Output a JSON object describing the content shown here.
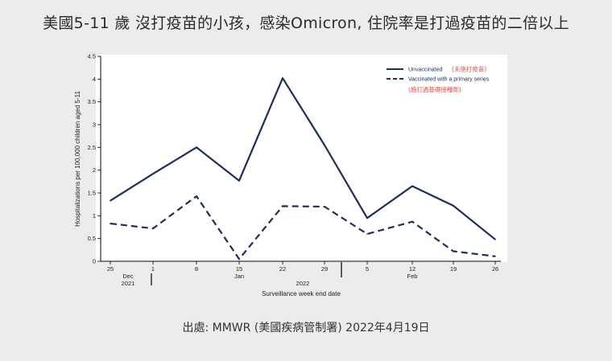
{
  "headline": "美國5-11 歲 沒打疫苗的小孩，感染Omicron, 住院率是打過疫苗的二倍以上",
  "source": "出處: MMWR (美國疾病管制署) 2022年4月19日",
  "chart_data": {
    "type": "line",
    "xlabel": "Surveillance week end date",
    "ylabel": "Hospitalizations per 100,000 children aged 5-11",
    "ylim": [
      0,
      4.5
    ],
    "yticks": [
      "0",
      "0.5",
      "1",
      "1.5",
      "2",
      "2.5",
      "3",
      "3.5",
      "4",
      "4.5"
    ],
    "categories": [
      "25",
      "1",
      "8",
      "15",
      "22",
      "29",
      "5",
      "12",
      "19",
      "26"
    ],
    "period_labels": [
      {
        "text": "Dec",
        "line2": "2021"
      },
      {
        "text": "Jan",
        "line2": ""
      },
      {
        "text": "2022",
        "line2": ""
      },
      {
        "text": "Feb",
        "line2": ""
      }
    ],
    "grid": false,
    "legend_position": "top-right",
    "series": [
      {
        "name": "Unvaccinated",
        "note": "(未施打疫苗)",
        "style": "solid",
        "color": "#1f2d5a",
        "values": [
          1.33,
          1.92,
          2.5,
          1.77,
          4.02,
          2.55,
          0.95,
          1.65,
          1.22,
          0.48
        ]
      },
      {
        "name": "Vaccinated with a primary series",
        "note": "(施打過基礎接種劑)",
        "style": "dashed",
        "color": "#1f2d5a",
        "values": [
          0.83,
          0.72,
          1.43,
          0.05,
          1.21,
          1.2,
          0.6,
          0.87,
          0.22,
          0.11
        ]
      }
    ]
  }
}
